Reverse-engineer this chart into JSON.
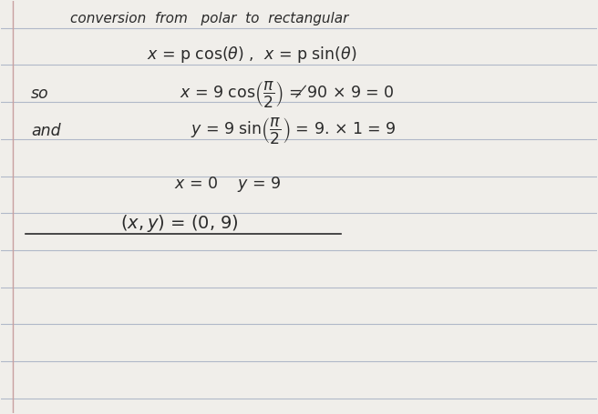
{
  "bg_color": "#f0eeea",
  "line_color": "#b0b8c8",
  "ink_color": "#2a2a2a",
  "fig_width": 6.56,
  "fig_height": 4.55,
  "title": "conversion  from   polar  to  rectangular",
  "formula1": "$\\mathcal{x}$ = p cos($\\theta$) ,  $\\mathit{x}$ = p sin($\\theta$)",
  "line1": "so  $x$ = 9 cos$\\left(\\dfrac{\\pi}{2}\\right)$ = $\\not{9}$0 $\\times$ 9 = 0",
  "line2": "and  $y$ = 9 sin$\\left(\\dfrac{\\pi}{2}\\right)$ = 9. $\\times$ 1 = 9",
  "line3": "$x$ = 0     $y$ = 9",
  "line4": "$(x, y)$ = (0, 9)"
}
